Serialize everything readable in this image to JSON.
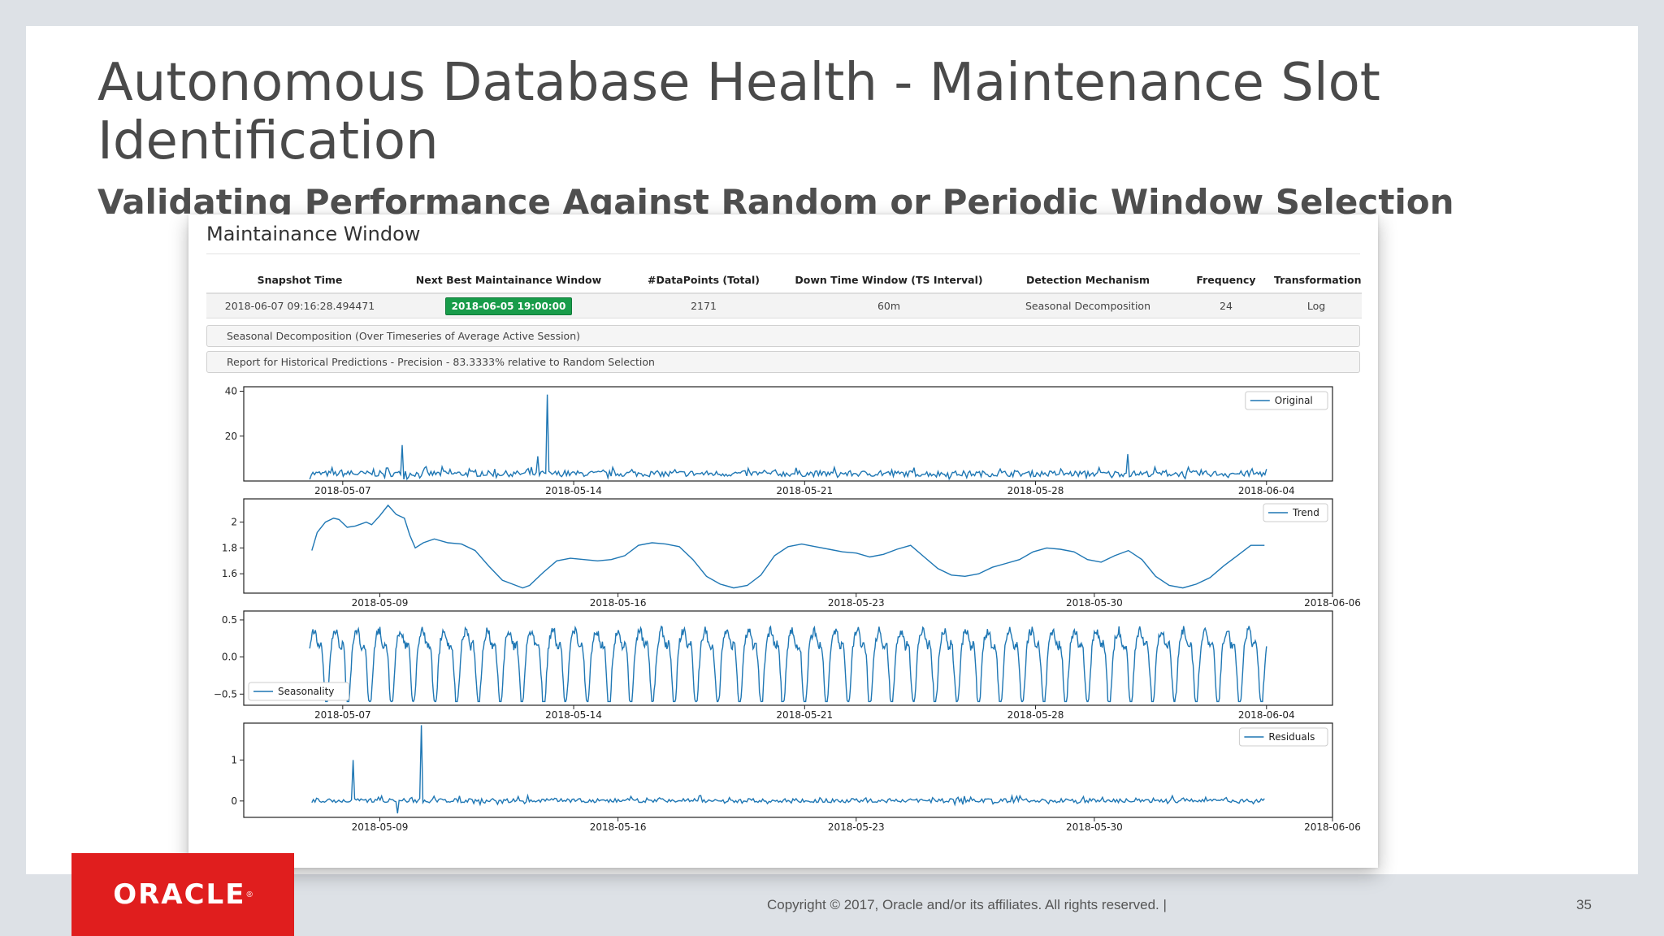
{
  "slide": {
    "title": "Autonomous Database Health - Maintenance Slot Identification",
    "subtitle": "Validating Performance Against Random or Periodic Window Selection",
    "footer": "Copyright © 2017, Oracle and/or its affiliates. All rights reserved.  |",
    "page_number": "35",
    "logo_text": "ORACLE",
    "accent_color": "#e01e1e"
  },
  "panel": {
    "title": "Maintainance Window",
    "table": {
      "headers": [
        "Snapshot Time",
        "Next Best Maintainance Window",
        "#DataPoints (Total)",
        "Down Time Window (TS Interval)",
        "Detection Mechanism",
        "Frequency",
        "Transformation"
      ],
      "row": {
        "snapshot_time": "2018-06-07 09:16:28.494471",
        "next_window": "2018-06-05 19:00:00",
        "datapoints": "2171",
        "downtime": "60m",
        "mechanism": "Seasonal Decomposition",
        "frequency": "24",
        "transformation": "Log"
      },
      "badge_color": "#189c4a"
    },
    "accordions": [
      "Seasonal Decomposition (Over Timeseries of Average Active Session)",
      "Report for Historical Predictions - Precision - 83.3333% relative to Random Selection"
    ]
  },
  "chart_data": [
    {
      "type": "line",
      "series": [
        {
          "name": "Original",
          "color": "#1f77b4"
        }
      ],
      "x_range": [
        "2018-05-04",
        "2018-06-06"
      ],
      "xticks": [
        "2018-05-07",
        "2018-05-14",
        "2018-05-21",
        "2018-05-28",
        "2018-06-04"
      ],
      "yticks": [
        20,
        40
      ],
      "ylim": [
        0,
        42
      ],
      "baseline": 3,
      "noise": 2.6,
      "spikes": [
        {
          "t": 2.8,
          "v": 16
        },
        {
          "t": 7.2,
          "v": 38.5
        },
        {
          "t": 6.9,
          "v": 11
        },
        {
          "t": 24.8,
          "v": 12
        }
      ],
      "legend": "top-right"
    },
    {
      "type": "line",
      "series": [
        {
          "name": "Trend",
          "color": "#1f77b4"
        }
      ],
      "x_range": [
        "2018-05-05",
        "2018-06-06"
      ],
      "xticks": [
        "2018-05-09",
        "2018-05-16",
        "2018-05-23",
        "2018-05-30",
        "2018-06-06"
      ],
      "yticks": [
        1.6,
        1.8,
        2.0
      ],
      "ylim": [
        1.45,
        2.18
      ],
      "points": [
        [
          0.0,
          1.78
        ],
        [
          0.4,
          1.92
        ],
        [
          1.0,
          2.0
        ],
        [
          1.6,
          2.03
        ],
        [
          2.0,
          2.02
        ],
        [
          2.6,
          1.96
        ],
        [
          3.2,
          1.97
        ],
        [
          4.0,
          2.0
        ],
        [
          4.4,
          1.98
        ],
        [
          5.0,
          2.05
        ],
        [
          5.6,
          2.13
        ],
        [
          6.2,
          2.06
        ],
        [
          6.8,
          2.03
        ],
        [
          7.2,
          1.9
        ],
        [
          7.6,
          1.8
        ],
        [
          8.2,
          1.84
        ],
        [
          9.0,
          1.87
        ],
        [
          10.0,
          1.84
        ],
        [
          11.0,
          1.83
        ],
        [
          12.0,
          1.78
        ],
        [
          13.0,
          1.66
        ],
        [
          14.0,
          1.55
        ],
        [
          15.0,
          1.51
        ],
        [
          15.5,
          1.49
        ],
        [
          16.0,
          1.51
        ],
        [
          17.0,
          1.61
        ],
        [
          18.0,
          1.7
        ],
        [
          19.0,
          1.72
        ],
        [
          20.0,
          1.71
        ],
        [
          21.0,
          1.7
        ],
        [
          22.0,
          1.71
        ],
        [
          23.0,
          1.74
        ],
        [
          24.0,
          1.82
        ],
        [
          25.0,
          1.84
        ],
        [
          26.0,
          1.83
        ],
        [
          27.0,
          1.81
        ],
        [
          28.0,
          1.71
        ],
        [
          29.0,
          1.58
        ],
        [
          30.0,
          1.52
        ],
        [
          31.0,
          1.49
        ],
        [
          32.0,
          1.51
        ],
        [
          33.0,
          1.59
        ],
        [
          34.0,
          1.74
        ],
        [
          35.0,
          1.81
        ],
        [
          36.0,
          1.83
        ],
        [
          37.0,
          1.81
        ],
        [
          38.0,
          1.79
        ],
        [
          39.0,
          1.77
        ],
        [
          40.0,
          1.76
        ],
        [
          41.0,
          1.73
        ],
        [
          42.0,
          1.75
        ],
        [
          43.0,
          1.79
        ],
        [
          44.0,
          1.82
        ],
        [
          45.0,
          1.73
        ],
        [
          46.0,
          1.64
        ],
        [
          47.0,
          1.59
        ],
        [
          48.0,
          1.58
        ],
        [
          49.0,
          1.6
        ],
        [
          50.0,
          1.65
        ],
        [
          51.0,
          1.68
        ],
        [
          52.0,
          1.71
        ],
        [
          53.0,
          1.77
        ],
        [
          54.0,
          1.8
        ],
        [
          55.0,
          1.79
        ],
        [
          56.0,
          1.77
        ],
        [
          57.0,
          1.71
        ],
        [
          58.0,
          1.69
        ],
        [
          59.0,
          1.74
        ],
        [
          60.0,
          1.78
        ],
        [
          61.0,
          1.71
        ],
        [
          62.0,
          1.58
        ],
        [
          63.0,
          1.51
        ],
        [
          64.0,
          1.49
        ],
        [
          65.0,
          1.52
        ],
        [
          66.0,
          1.57
        ],
        [
          67.0,
          1.66
        ],
        [
          68.0,
          1.74
        ],
        [
          69.0,
          1.82
        ],
        [
          70.0,
          1.82
        ]
      ],
      "legend": "top-right"
    },
    {
      "type": "line",
      "series": [
        {
          "name": "Seasonality",
          "color": "#1f77b4"
        }
      ],
      "x_range": [
        "2018-05-04",
        "2018-06-06"
      ],
      "xticks": [
        "2018-05-07",
        "2018-05-14",
        "2018-05-21",
        "2018-05-28",
        "2018-06-04"
      ],
      "yticks": [
        -0.5,
        0.0,
        0.5
      ],
      "ytick_labels": [
        "−0.5",
        "0.0",
        "0.5"
      ],
      "ylim": [
        -0.65,
        0.62
      ],
      "periods": 44,
      "amplitude": 0.56,
      "legend": "bottom-left"
    },
    {
      "type": "line",
      "series": [
        {
          "name": "Residuals",
          "color": "#1f77b4"
        }
      ],
      "x_range": [
        "2018-05-05",
        "2018-06-06"
      ],
      "xticks": [
        "2018-05-09",
        "2018-05-16",
        "2018-05-23",
        "2018-05-30",
        "2018-06-06"
      ],
      "yticks": [
        0,
        1
      ],
      "ylim": [
        -0.4,
        1.9
      ],
      "noise": 0.1,
      "spikes": [
        {
          "t": 1.2,
          "v": 1.0
        },
        {
          "t": 3.2,
          "v": 1.85
        },
        {
          "t": 2.5,
          "v": -0.3
        }
      ],
      "legend": "top-right"
    }
  ]
}
